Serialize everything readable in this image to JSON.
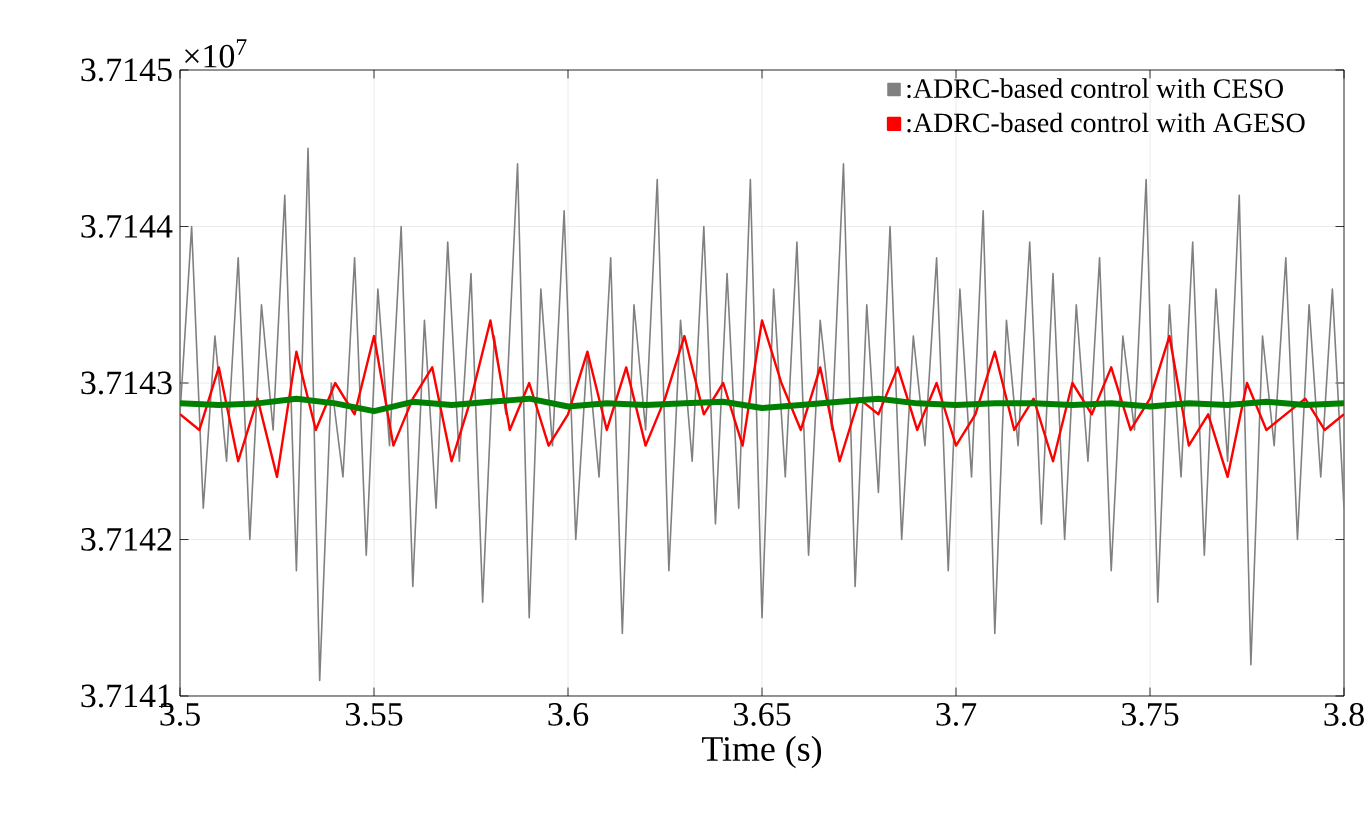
{
  "chart_data": {
    "type": "line",
    "xlabel": "Time (s)",
    "annotations": [
      "×10$^{7}$"
    ],
    "xlim": [
      3.5,
      3.8
    ],
    "xticks": [
      3.5,
      3.55,
      3.6,
      3.65,
      3.7,
      3.75,
      3.8
    ],
    "ylim": [
      3.7141,
      3.7145
    ],
    "yticks": [
      3.7141,
      3.7142,
      3.7143,
      3.7144,
      3.7145
    ],
    "grid": true,
    "legend": "top right",
    "series": [
      {
        "name": ":ADRC-based control with CESO",
        "color": "#808080",
        "x": [
          3.5,
          3.503,
          3.506,
          3.509,
          3.512,
          3.515,
          3.518,
          3.521,
          3.524,
          3.527,
          3.53,
          3.533,
          3.536,
          3.539,
          3.542,
          3.545,
          3.548,
          3.551,
          3.554,
          3.557,
          3.56,
          3.563,
          3.566,
          3.569,
          3.572,
          3.575,
          3.578,
          3.581,
          3.584,
          3.587,
          3.59,
          3.593,
          3.596,
          3.599,
          3.602,
          3.605,
          3.608,
          3.611,
          3.614,
          3.617,
          3.62,
          3.623,
          3.626,
          3.629,
          3.632,
          3.635,
          3.638,
          3.641,
          3.644,
          3.647,
          3.65,
          3.653,
          3.656,
          3.659,
          3.662,
          3.665,
          3.668,
          3.671,
          3.674,
          3.677,
          3.68,
          3.683,
          3.686,
          3.689,
          3.692,
          3.695,
          3.698,
          3.701,
          3.704,
          3.707,
          3.71,
          3.713,
          3.716,
          3.719,
          3.722,
          3.725,
          3.728,
          3.731,
          3.734,
          3.737,
          3.74,
          3.743,
          3.746,
          3.749,
          3.752,
          3.755,
          3.758,
          3.761,
          3.764,
          3.767,
          3.77,
          3.773,
          3.776,
          3.779,
          3.782,
          3.785,
          3.788,
          3.791,
          3.794,
          3.797,
          3.8
        ],
        "values": [
          3.71428,
          3.7144,
          3.71422,
          3.71433,
          3.71425,
          3.71438,
          3.7142,
          3.71435,
          3.71427,
          3.71442,
          3.71418,
          3.71445,
          3.71411,
          3.7143,
          3.71424,
          3.71438,
          3.71419,
          3.71436,
          3.71426,
          3.7144,
          3.71417,
          3.71434,
          3.71422,
          3.71439,
          3.71425,
          3.71437,
          3.71416,
          3.71433,
          3.71428,
          3.71444,
          3.71415,
          3.71436,
          3.71426,
          3.71441,
          3.7142,
          3.71432,
          3.71424,
          3.71438,
          3.71414,
          3.71435,
          3.71427,
          3.71443,
          3.71418,
          3.71434,
          3.71425,
          3.7144,
          3.71421,
          3.71437,
          3.71422,
          3.71443,
          3.71415,
          3.71436,
          3.71424,
          3.71439,
          3.71419,
          3.71434,
          3.71427,
          3.71444,
          3.71417,
          3.71435,
          3.71423,
          3.7144,
          3.7142,
          3.71433,
          3.71426,
          3.71438,
          3.71418,
          3.71436,
          3.71424,
          3.71441,
          3.71414,
          3.71434,
          3.71426,
          3.71439,
          3.71421,
          3.71437,
          3.7142,
          3.71435,
          3.71425,
          3.71438,
          3.71418,
          3.71433,
          3.71427,
          3.71443,
          3.71416,
          3.71435,
          3.71424,
          3.71439,
          3.71419,
          3.71436,
          3.71425,
          3.71442,
          3.71412,
          3.71433,
          3.71426,
          3.71438,
          3.7142,
          3.71435,
          3.71424,
          3.71436,
          3.71422
        ]
      },
      {
        "name": ":ADRC-based control with AGESO",
        "color": "#ff0000",
        "x": [
          3.5,
          3.505,
          3.51,
          3.515,
          3.52,
          3.525,
          3.53,
          3.535,
          3.54,
          3.545,
          3.55,
          3.555,
          3.56,
          3.565,
          3.57,
          3.575,
          3.58,
          3.585,
          3.59,
          3.595,
          3.6,
          3.605,
          3.61,
          3.615,
          3.62,
          3.625,
          3.63,
          3.635,
          3.64,
          3.645,
          3.65,
          3.655,
          3.66,
          3.665,
          3.67,
          3.675,
          3.68,
          3.685,
          3.69,
          3.695,
          3.7,
          3.705,
          3.71,
          3.715,
          3.72,
          3.725,
          3.73,
          3.735,
          3.74,
          3.745,
          3.75,
          3.755,
          3.76,
          3.765,
          3.77,
          3.775,
          3.78,
          3.785,
          3.79,
          3.795,
          3.8
        ],
        "values": [
          3.71428,
          3.71427,
          3.71431,
          3.71425,
          3.71429,
          3.71424,
          3.71432,
          3.71427,
          3.7143,
          3.71428,
          3.71433,
          3.71426,
          3.71429,
          3.71431,
          3.71425,
          3.71429,
          3.71434,
          3.71427,
          3.7143,
          3.71426,
          3.71428,
          3.71432,
          3.71427,
          3.71431,
          3.71426,
          3.71429,
          3.71433,
          3.71428,
          3.7143,
          3.71426,
          3.71434,
          3.7143,
          3.71427,
          3.71431,
          3.71425,
          3.71429,
          3.71428,
          3.71431,
          3.71427,
          3.7143,
          3.71426,
          3.71428,
          3.71432,
          3.71427,
          3.71429,
          3.71425,
          3.7143,
          3.71428,
          3.71431,
          3.71427,
          3.71429,
          3.71433,
          3.71426,
          3.71428,
          3.71424,
          3.7143,
          3.71427,
          3.71428,
          3.71429,
          3.71427,
          3.71428
        ]
      },
      {
        "color": "#008000",
        "x": [
          3.5,
          3.51,
          3.52,
          3.53,
          3.54,
          3.55,
          3.56,
          3.57,
          3.58,
          3.59,
          3.6,
          3.61,
          3.62,
          3.63,
          3.64,
          3.65,
          3.66,
          3.67,
          3.68,
          3.69,
          3.7,
          3.71,
          3.72,
          3.73,
          3.74,
          3.75,
          3.76,
          3.77,
          3.78,
          3.79,
          3.8
        ],
        "values": [
          3.714287,
          3.714286,
          3.714287,
          3.71429,
          3.714287,
          3.714282,
          3.714288,
          3.714286,
          3.714288,
          3.71429,
          3.714285,
          3.714287,
          3.714286,
          3.714287,
          3.714288,
          3.714284,
          3.714286,
          3.714288,
          3.71429,
          3.714287,
          3.714286,
          3.714287,
          3.714287,
          3.714286,
          3.714287,
          3.714285,
          3.714287,
          3.714286,
          3.714288,
          3.714286,
          3.714287
        ]
      }
    ]
  }
}
